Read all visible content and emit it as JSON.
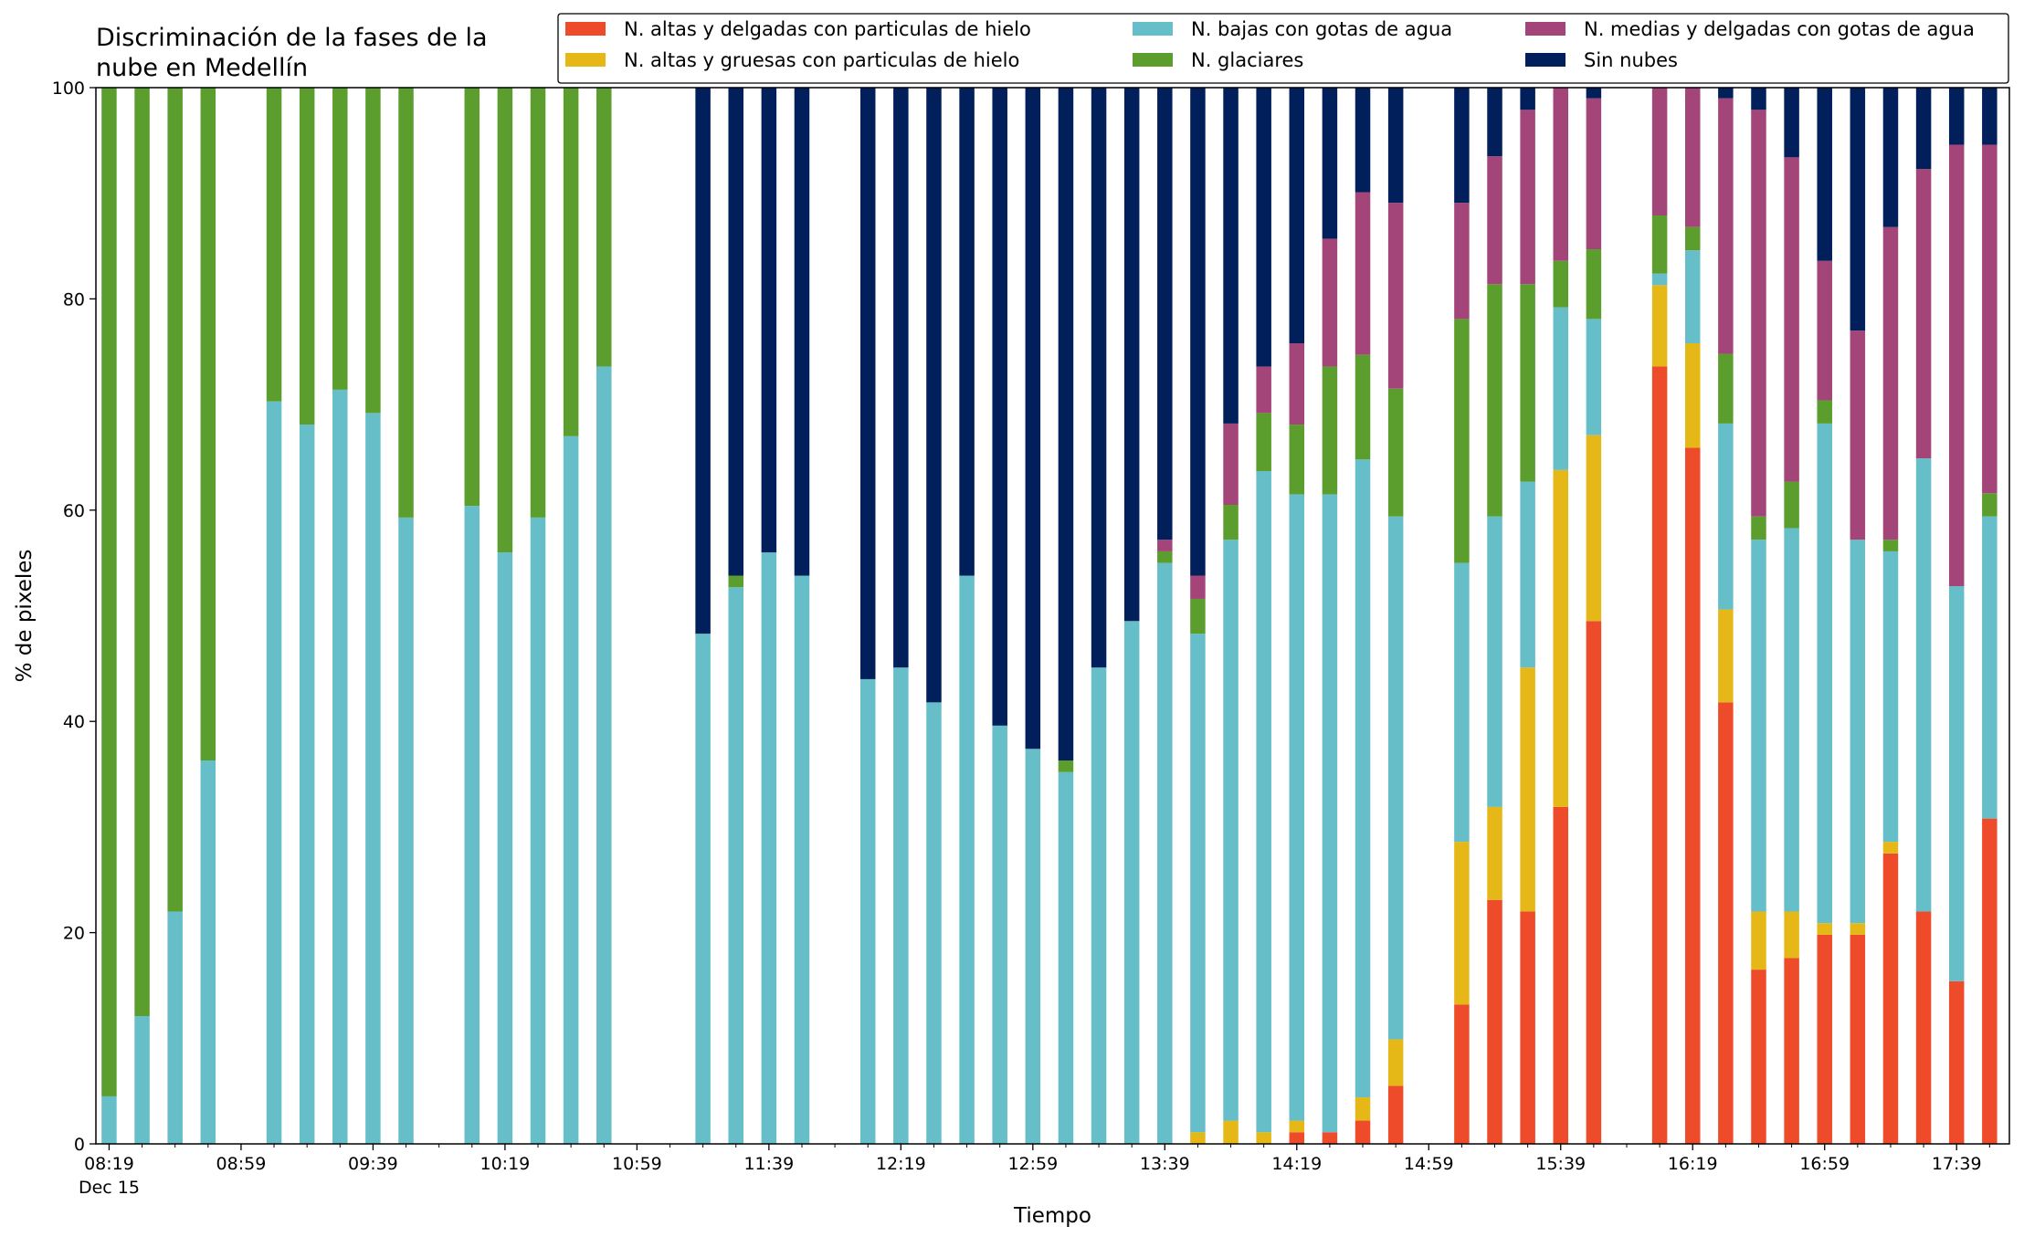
{
  "chart_data": {
    "type": "bar",
    "stacked": true,
    "title_lines": [
      "Discriminación de la fases de la",
      "nube en Medellín"
    ],
    "xlabel": "Tiempo",
    "ylabel": "% de pixeles",
    "ylim": [
      0,
      100
    ],
    "yticks": [
      0,
      20,
      40,
      60,
      80,
      100
    ],
    "x_range_minutes": [
      495,
      1075
    ],
    "xtick_labels": [
      {
        "t": 499,
        "label": "08:19",
        "sublabel": "Dec 15"
      },
      {
        "t": 539,
        "label": "08:59"
      },
      {
        "t": 579,
        "label": "09:39"
      },
      {
        "t": 619,
        "label": "10:19"
      },
      {
        "t": 659,
        "label": "10:59"
      },
      {
        "t": 699,
        "label": "11:39"
      },
      {
        "t": 739,
        "label": "12:19"
      },
      {
        "t": 779,
        "label": "12:59"
      },
      {
        "t": 819,
        "label": "13:39"
      },
      {
        "t": 859,
        "label": "14:19"
      },
      {
        "t": 899,
        "label": "14:59"
      },
      {
        "t": 939,
        "label": "15:39"
      },
      {
        "t": 979,
        "label": "16:19"
      },
      {
        "t": 1019,
        "label": "16:59"
      },
      {
        "t": 1059,
        "label": "17:39"
      }
    ],
    "minor_tick_step_minutes": 10,
    "grid": false,
    "legend_position": "top-right",
    "legend_order": [
      "alt_delg",
      "alt_grues",
      "bajas",
      "glaciares",
      "medias",
      "sin_nubes"
    ],
    "series": [
      {
        "key": "alt_delg",
        "name": "N. altas y delgadas con particulas de hielo",
        "color": "#ee4b2b"
      },
      {
        "key": "alt_grues",
        "name": "N. altas y gruesas con particulas de hielo",
        "color": "#e6b817"
      },
      {
        "key": "bajas",
        "name": "N. bajas con gotas de agua",
        "color": "#66bec9"
      },
      {
        "key": "glaciares",
        "name": "N. glaciares",
        "color": "#5b9e2d"
      },
      {
        "key": "medias",
        "name": "N. medias y delgadas con gotas de agua",
        "color": "#a4457a"
      },
      {
        "key": "sin_nubes",
        "name": "Sin nubes",
        "color": "#001f5b"
      }
    ],
    "stack_order": [
      "alt_delg",
      "alt_grues",
      "bajas",
      "glaciares",
      "medias",
      "sin_nubes"
    ],
    "bars": [
      {
        "t": 499,
        "v": [
          0,
          0,
          4.5,
          95.5,
          0,
          0
        ]
      },
      {
        "t": 509,
        "v": [
          0,
          0,
          12.1,
          87.9,
          0,
          0
        ]
      },
      {
        "t": 519,
        "v": [
          0,
          0,
          22,
          78,
          0,
          0
        ]
      },
      {
        "t": 529,
        "v": [
          0,
          0,
          36.3,
          63.7,
          0,
          0
        ]
      },
      {
        "t": 549,
        "v": [
          0,
          0,
          70.3,
          29.7,
          0,
          0
        ]
      },
      {
        "t": 559,
        "v": [
          0,
          0,
          68.1,
          31.9,
          0,
          0
        ]
      },
      {
        "t": 569,
        "v": [
          0,
          0,
          71.4,
          28.6,
          0,
          0
        ]
      },
      {
        "t": 579,
        "v": [
          0,
          0,
          69.2,
          30.8,
          0,
          0
        ]
      },
      {
        "t": 589,
        "v": [
          0,
          0,
          59.3,
          40.7,
          0,
          0
        ]
      },
      {
        "t": 609,
        "v": [
          0,
          0,
          60.4,
          39.6,
          0,
          0
        ]
      },
      {
        "t": 619,
        "v": [
          0,
          0,
          56,
          44,
          0,
          0
        ]
      },
      {
        "t": 629,
        "v": [
          0,
          0,
          59.3,
          40.7,
          0,
          0
        ]
      },
      {
        "t": 639,
        "v": [
          0,
          0,
          67,
          33,
          0,
          0
        ]
      },
      {
        "t": 649,
        "v": [
          0,
          0,
          73.6,
          26.4,
          0,
          0
        ]
      },
      {
        "t": 679,
        "v": [
          0,
          0,
          48.3,
          0,
          0,
          51.7
        ]
      },
      {
        "t": 689,
        "v": [
          0,
          0,
          52.7,
          1.1,
          0,
          46.2
        ]
      },
      {
        "t": 699,
        "v": [
          0,
          0,
          56,
          0,
          0,
          44
        ]
      },
      {
        "t": 709,
        "v": [
          0,
          0,
          53.8,
          0,
          0,
          46.2
        ]
      },
      {
        "t": 729,
        "v": [
          0,
          0,
          44,
          0,
          0,
          56
        ]
      },
      {
        "t": 739,
        "v": [
          0,
          0,
          45.1,
          0,
          0,
          54.9
        ]
      },
      {
        "t": 749,
        "v": [
          0,
          0,
          41.8,
          0,
          0,
          58.2
        ]
      },
      {
        "t": 759,
        "v": [
          0,
          0,
          53.8,
          0,
          0,
          46.2
        ]
      },
      {
        "t": 769,
        "v": [
          0,
          0,
          39.6,
          0,
          0,
          60.4
        ]
      },
      {
        "t": 779,
        "v": [
          0,
          0,
          37.4,
          0,
          0,
          62.6
        ]
      },
      {
        "t": 789,
        "v": [
          0,
          0,
          35.2,
          1.1,
          0,
          63.7
        ]
      },
      {
        "t": 799,
        "v": [
          0,
          0,
          45.1,
          0,
          0,
          54.9
        ]
      },
      {
        "t": 809,
        "v": [
          0,
          0,
          49.5,
          0,
          0,
          50.5
        ]
      },
      {
        "t": 819,
        "v": [
          0,
          0,
          55,
          1.1,
          1.1,
          42.8
        ]
      },
      {
        "t": 829,
        "v": [
          0,
          1.1,
          47.2,
          3.3,
          2.2,
          46.2
        ]
      },
      {
        "t": 839,
        "v": [
          0,
          2.2,
          55,
          3.3,
          7.7,
          31.8
        ]
      },
      {
        "t": 849,
        "v": [
          0,
          1.1,
          62.6,
          5.5,
          4.4,
          26.4
        ]
      },
      {
        "t": 859,
        "v": [
          1.1,
          1.1,
          59.3,
          6.6,
          7.7,
          24.2
        ]
      },
      {
        "t": 869,
        "v": [
          1.1,
          0,
          60.4,
          12.1,
          12.1,
          14.3
        ]
      },
      {
        "t": 879,
        "v": [
          2.2,
          2.2,
          60.4,
          9.9,
          15.4,
          9.9
        ]
      },
      {
        "t": 889,
        "v": [
          5.5,
          4.4,
          49.5,
          12.1,
          17.6,
          10.9
        ]
      },
      {
        "t": 909,
        "v": [
          13.2,
          15.4,
          26.4,
          23.1,
          11,
          10.9
        ]
      },
      {
        "t": 919,
        "v": [
          23.1,
          8.8,
          27.5,
          22,
          12.1,
          6.5
        ]
      },
      {
        "t": 929,
        "v": [
          22,
          23.1,
          17.6,
          18.7,
          16.5,
          2.1
        ]
      },
      {
        "t": 939,
        "v": [
          31.9,
          31.9,
          15.4,
          4.4,
          16.4,
          0
        ]
      },
      {
        "t": 949,
        "v": [
          49.5,
          17.6,
          11,
          6.6,
          14.3,
          1
        ]
      },
      {
        "t": 969,
        "v": [
          73.6,
          7.7,
          1.1,
          5.5,
          12.1,
          0
        ]
      },
      {
        "t": 979,
        "v": [
          65.9,
          9.9,
          8.8,
          2.2,
          13.2,
          0
        ]
      },
      {
        "t": 989,
        "v": [
          41.8,
          8.8,
          17.6,
          6.6,
          24.2,
          1
        ]
      },
      {
        "t": 999,
        "v": [
          16.5,
          5.5,
          35.2,
          2.2,
          38.5,
          2.1
        ]
      },
      {
        "t": 1009,
        "v": [
          17.6,
          4.4,
          36.3,
          4.4,
          30.7,
          6.6
        ]
      },
      {
        "t": 1019,
        "v": [
          19.8,
          1.1,
          47.3,
          2.2,
          13.2,
          16.4
        ]
      },
      {
        "t": 1029,
        "v": [
          19.8,
          1.1,
          36.3,
          0,
          19.8,
          23
        ]
      },
      {
        "t": 1039,
        "v": [
          27.5,
          1.1,
          27.5,
          1.1,
          29.6,
          13.2
        ]
      },
      {
        "t": 1049,
        "v": [
          22,
          0,
          42.9,
          0,
          27.4,
          7.7
        ]
      },
      {
        "t": 1059,
        "v": [
          15.4,
          0,
          37.4,
          0,
          41.8,
          5.4
        ]
      },
      {
        "t": 1069,
        "v": [
          30.8,
          0,
          28.6,
          2.2,
          33,
          5.4
        ]
      }
    ]
  }
}
